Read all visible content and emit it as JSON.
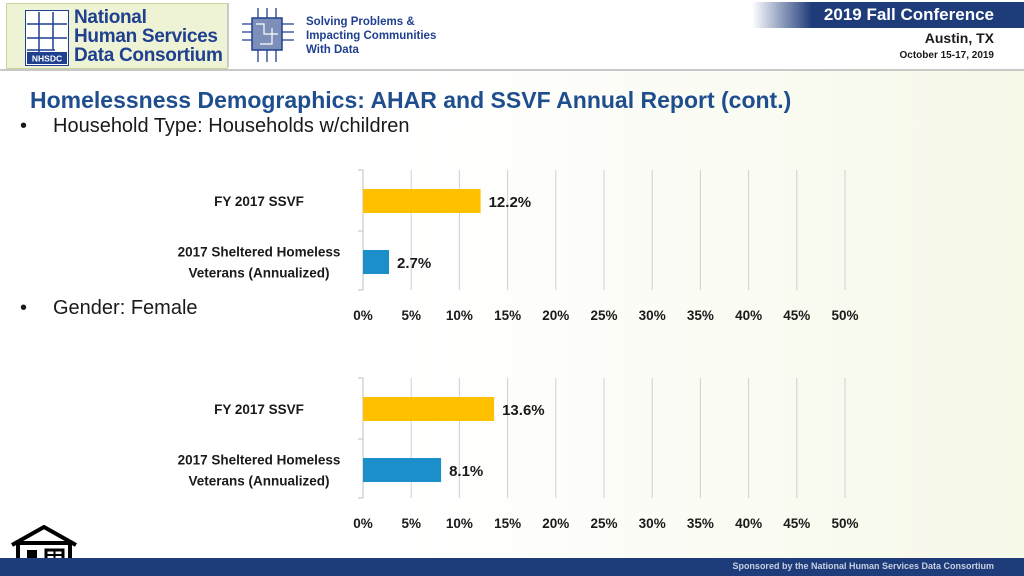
{
  "header": {
    "logo_lines": [
      "National",
      "Human Services",
      "Data Consortium"
    ],
    "logo_badge": "NHSDC",
    "tagline_lines": [
      "Solving Problems &",
      "Impacting Communities",
      "With Data"
    ],
    "conference_title": "2019 Fall Conference",
    "conference_city": "Austin, TX",
    "conference_dates": "October 15-17, 2019"
  },
  "slide": {
    "title": "Homelessness Demographics:  AHAR and SSVF Annual Report (cont.)",
    "bullets": [
      {
        "symbol": "•",
        "text": "Household Type: Households w/children"
      },
      {
        "symbol": "•",
        "text": "Gender: Female"
      }
    ]
  },
  "footer": {
    "text": "Sponsored by the National Human Services Data Consortium"
  },
  "colors": {
    "ssvf": "#FFC000",
    "ahar": "#1B8FC9",
    "grid": "#d0d0d0",
    "title": "#1f4e8f",
    "banner": "#1f3c7a"
  },
  "chart_data": [
    {
      "type": "bar",
      "orientation": "horizontal",
      "categories": [
        [
          "FY 2017 SSVF"
        ],
        [
          "2017 Sheltered Homeless",
          "Veterans (Annualized)"
        ]
      ],
      "values": [
        12.2,
        2.7
      ],
      "value_labels": [
        "12.2%",
        "2.7%"
      ],
      "xlim": [
        0,
        50
      ],
      "xticks": [
        0,
        5,
        10,
        15,
        20,
        25,
        30,
        35,
        40,
        45,
        50
      ],
      "tick_labels": [
        "0%",
        "5%",
        "10%",
        "15%",
        "20%",
        "25%",
        "30%",
        "35%",
        "40%",
        "45%",
        "50%"
      ],
      "grid": true
    },
    {
      "type": "bar",
      "orientation": "horizontal",
      "categories": [
        [
          "FY 2017 SSVF"
        ],
        [
          "2017 Sheltered Homeless",
          "Veterans (Annualized)"
        ]
      ],
      "values": [
        13.6,
        8.1
      ],
      "value_labels": [
        "13.6%",
        "8.1%"
      ],
      "xlim": [
        0,
        50
      ],
      "xticks": [
        0,
        5,
        10,
        15,
        20,
        25,
        30,
        35,
        40,
        45,
        50
      ],
      "tick_labels": [
        "0%",
        "5%",
        "10%",
        "15%",
        "20%",
        "25%",
        "30%",
        "35%",
        "40%",
        "45%",
        "50%"
      ],
      "grid": true
    }
  ]
}
